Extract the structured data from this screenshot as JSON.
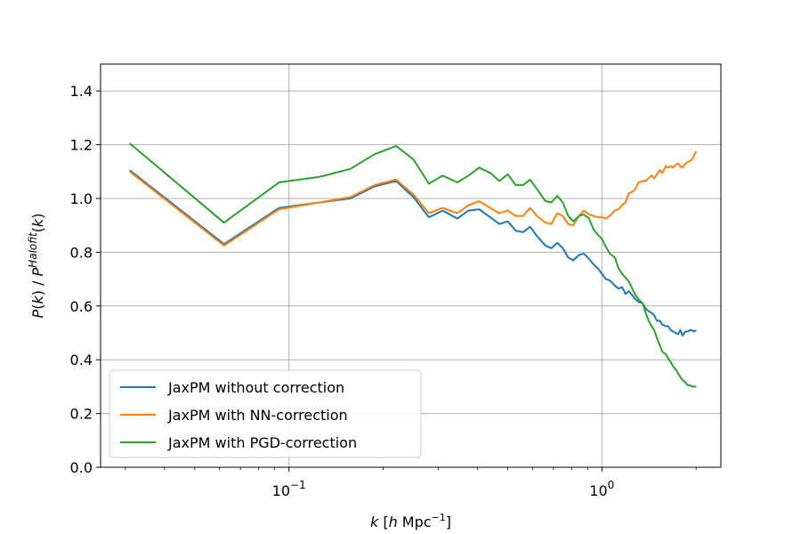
{
  "chart_data": {
    "type": "line",
    "title": "",
    "xlabel": "k [h Mpc⁻¹]",
    "ylabel": "P(k) / P^Halofit(k)",
    "xscale": "log",
    "xlim": [
      0.025,
      2.4
    ],
    "ylim": [
      0.0,
      1.5
    ],
    "grid": true,
    "legend": "lower-left",
    "yticks": [
      {
        "value": 0.0,
        "label": "0.0"
      },
      {
        "value": 0.2,
        "label": "0.2"
      },
      {
        "value": 0.4,
        "label": "0.4"
      },
      {
        "value": 0.6,
        "label": "0.6"
      },
      {
        "value": 0.8,
        "label": "0.8"
      },
      {
        "value": 1.0,
        "label": "1.0"
      },
      {
        "value": 1.2,
        "label": "1.2"
      },
      {
        "value": 1.4,
        "label": "1.4"
      }
    ],
    "xticks_major": [
      {
        "value": 0.1,
        "base": "10",
        "exp": "−1"
      },
      {
        "value": 1.0,
        "base": "10",
        "exp": "0"
      }
    ],
    "series": [
      {
        "name": "JaxPM without correction",
        "color": "#1f77b4",
        "x": [
          0.031,
          0.062,
          0.093,
          0.125,
          0.157,
          0.188,
          0.22,
          0.25,
          0.28,
          0.31,
          0.345,
          0.375,
          0.405,
          0.44,
          0.47,
          0.5,
          0.53,
          0.56,
          0.59,
          0.62,
          0.66,
          0.69,
          0.72,
          0.75,
          0.78,
          0.81,
          0.845,
          0.875,
          0.91,
          0.94,
          0.97,
          1.0,
          1.03,
          1.06,
          1.1,
          1.13,
          1.16,
          1.19,
          1.22,
          1.25,
          1.28,
          1.31,
          1.35,
          1.38,
          1.41,
          1.44,
          1.47,
          1.5,
          1.53,
          1.56,
          1.6,
          1.63,
          1.66,
          1.69,
          1.72,
          1.75,
          1.78,
          1.81,
          1.85,
          1.88,
          1.91,
          1.94,
          1.97,
          2.0
        ],
        "y": [
          1.105,
          0.83,
          0.965,
          0.985,
          1.0,
          1.045,
          1.065,
          1.005,
          0.93,
          0.955,
          0.925,
          0.955,
          0.96,
          0.93,
          0.905,
          0.915,
          0.88,
          0.875,
          0.895,
          0.86,
          0.825,
          0.815,
          0.835,
          0.815,
          0.78,
          0.77,
          0.79,
          0.795,
          0.775,
          0.755,
          0.74,
          0.72,
          0.7,
          0.695,
          0.675,
          0.665,
          0.67,
          0.645,
          0.655,
          0.64,
          0.625,
          0.615,
          0.61,
          0.59,
          0.58,
          0.575,
          0.565,
          0.545,
          0.545,
          0.53,
          0.525,
          0.525,
          0.51,
          0.505,
          0.5,
          0.495,
          0.51,
          0.49,
          0.505,
          0.505,
          0.51,
          0.51,
          0.505,
          0.51
        ]
      },
      {
        "name": "JaxPM with NN-correction",
        "color": "#ff7f0e",
        "x": [
          0.031,
          0.062,
          0.093,
          0.125,
          0.157,
          0.188,
          0.22,
          0.25,
          0.28,
          0.31,
          0.345,
          0.375,
          0.405,
          0.44,
          0.47,
          0.5,
          0.53,
          0.56,
          0.59,
          0.62,
          0.66,
          0.69,
          0.72,
          0.75,
          0.78,
          0.81,
          0.845,
          0.875,
          0.91,
          0.94,
          0.97,
          1.0,
          1.03,
          1.06,
          1.1,
          1.13,
          1.16,
          1.19,
          1.22,
          1.25,
          1.28,
          1.31,
          1.35,
          1.38,
          1.41,
          1.44,
          1.47,
          1.5,
          1.53,
          1.56,
          1.6,
          1.63,
          1.66,
          1.69,
          1.72,
          1.75,
          1.78,
          1.81,
          1.85,
          1.88,
          1.91,
          1.94,
          1.97,
          2.0
        ],
        "y": [
          1.1,
          0.825,
          0.96,
          0.985,
          1.005,
          1.05,
          1.07,
          1.015,
          0.945,
          0.965,
          0.945,
          0.975,
          0.99,
          0.965,
          0.945,
          0.955,
          0.935,
          0.935,
          0.965,
          0.935,
          0.91,
          0.905,
          0.945,
          0.935,
          0.905,
          0.9,
          0.935,
          0.955,
          0.94,
          0.935,
          0.93,
          0.93,
          0.925,
          0.935,
          0.955,
          0.96,
          0.975,
          0.985,
          1.02,
          1.025,
          1.035,
          1.06,
          1.065,
          1.065,
          1.075,
          1.085,
          1.075,
          1.09,
          1.105,
          1.095,
          1.12,
          1.115,
          1.12,
          1.115,
          1.125,
          1.13,
          1.12,
          1.115,
          1.13,
          1.135,
          1.14,
          1.145,
          1.16,
          1.175
        ]
      },
      {
        "name": "JaxPM with PGD-correction",
        "color": "#2ca02c",
        "x": [
          0.031,
          0.062,
          0.093,
          0.125,
          0.157,
          0.188,
          0.22,
          0.25,
          0.28,
          0.31,
          0.345,
          0.375,
          0.405,
          0.44,
          0.47,
          0.5,
          0.53,
          0.56,
          0.59,
          0.62,
          0.66,
          0.69,
          0.72,
          0.75,
          0.78,
          0.81,
          0.845,
          0.875,
          0.91,
          0.94,
          0.97,
          1.0,
          1.03,
          1.06,
          1.1,
          1.13,
          1.16,
          1.19,
          1.22,
          1.25,
          1.28,
          1.31,
          1.35,
          1.38,
          1.41,
          1.44,
          1.47,
          1.5,
          1.53,
          1.56,
          1.6,
          1.63,
          1.66,
          1.69,
          1.72,
          1.75,
          1.78,
          1.81,
          1.85,
          1.88,
          1.91,
          1.94,
          1.97,
          2.0
        ],
        "y": [
          1.205,
          0.91,
          1.06,
          1.08,
          1.11,
          1.165,
          1.195,
          1.145,
          1.055,
          1.085,
          1.06,
          1.085,
          1.115,
          1.095,
          1.065,
          1.09,
          1.05,
          1.05,
          1.07,
          1.035,
          0.99,
          0.985,
          1.01,
          0.985,
          0.935,
          0.915,
          0.935,
          0.94,
          0.925,
          0.885,
          0.865,
          0.85,
          0.82,
          0.795,
          0.78,
          0.74,
          0.72,
          0.705,
          0.69,
          0.665,
          0.64,
          0.625,
          0.61,
          0.575,
          0.545,
          0.525,
          0.51,
          0.48,
          0.455,
          0.43,
          0.42,
          0.405,
          0.39,
          0.375,
          0.365,
          0.35,
          0.335,
          0.325,
          0.315,
          0.305,
          0.305,
          0.3,
          0.3,
          0.3
        ]
      }
    ]
  }
}
